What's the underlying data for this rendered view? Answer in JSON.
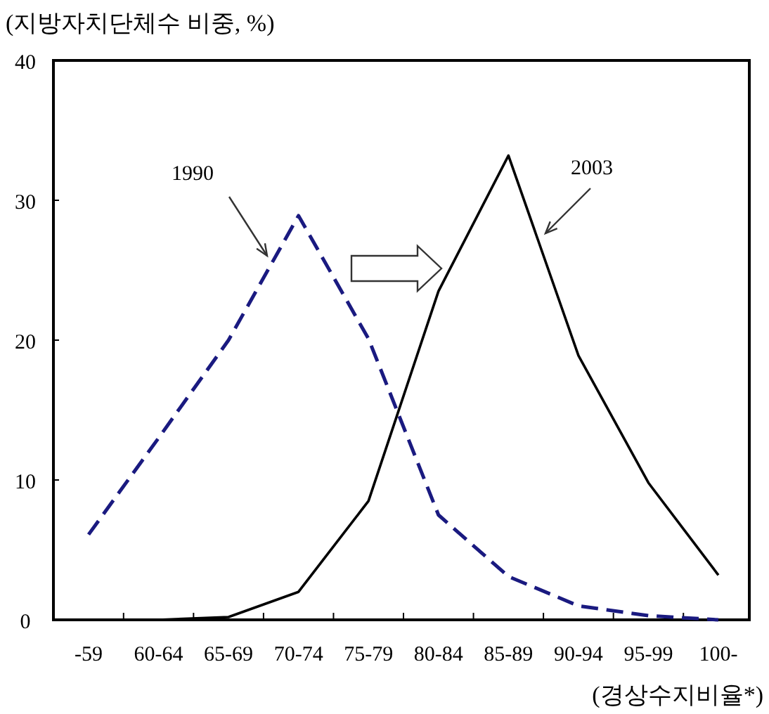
{
  "chart_data": {
    "type": "line",
    "ylabel": "(지방자치단체수 비중, %)",
    "xlabel": "(경상수지비율*)",
    "categories": [
      "-59",
      "60-64",
      "65-69",
      "70-74",
      "75-79",
      "80-84",
      "85-89",
      "90-94",
      "95-99",
      "100-"
    ],
    "ylim": [
      0,
      40
    ],
    "yticks": [
      0,
      10,
      20,
      30,
      40
    ],
    "marker": "none",
    "series": [
      {
        "name": "1990",
        "color": "#1a1a80",
        "line_style": "dashed",
        "values": [
          6.1,
          13,
          20,
          28.9,
          20.1,
          7.5,
          3.1,
          1.0,
          0.3,
          0
        ]
      },
      {
        "name": "2003",
        "color": "#000000",
        "line_style": "solid",
        "values": [
          0,
          0,
          0.2,
          2.0,
          8.5,
          23.5,
          33.2,
          18.9,
          9.8,
          3.2
        ]
      }
    ]
  }
}
